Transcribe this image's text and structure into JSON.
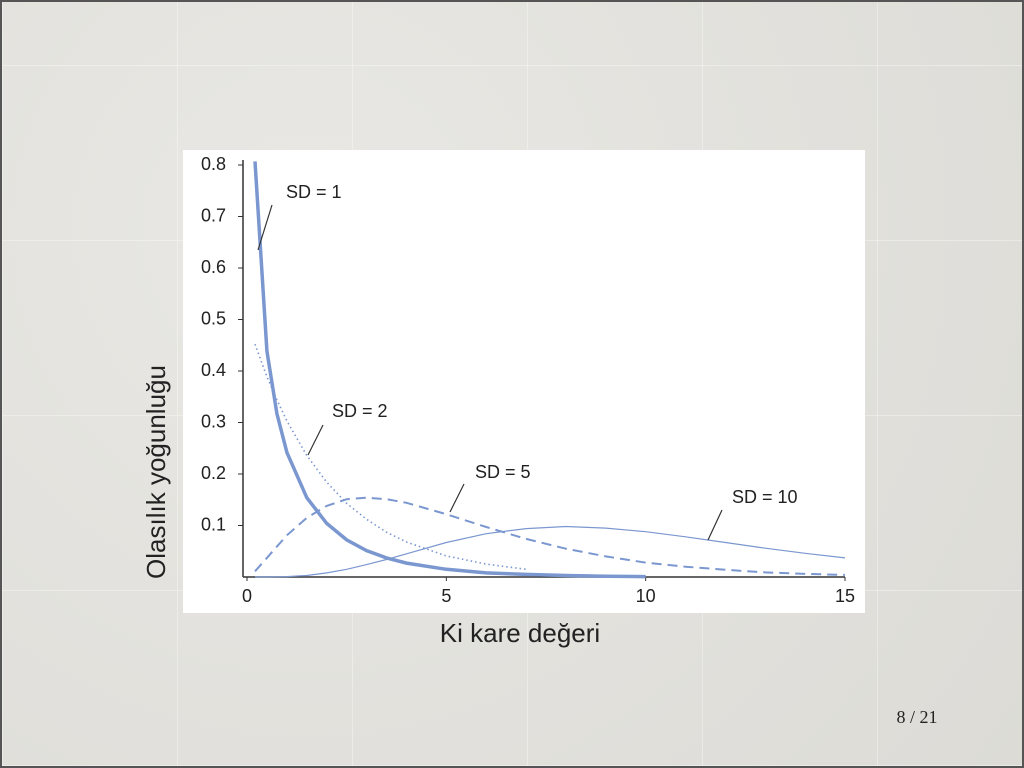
{
  "chart_data": {
    "type": "line",
    "x_label": "Ki kare değeri",
    "y_label": "Olasılık yoğunluğu",
    "x": [
      0.2,
      0.5,
      0.75,
      1,
      1.5,
      2,
      2.5,
      3,
      3.5,
      4,
      5,
      6,
      7,
      8,
      9,
      10,
      11,
      12,
      13,
      14,
      15
    ],
    "series": [
      {
        "name": "SD = 1",
        "color": "#7b97d0",
        "style": "solid",
        "width": 3.5,
        "values": [
          0.807,
          0.439,
          0.317,
          0.242,
          0.154,
          0.104,
          0.072,
          0.051,
          0.037,
          0.027,
          0.015,
          0.008,
          0.005,
          0.003,
          0.0015,
          0.0008,
          null,
          null,
          null,
          null,
          null
        ]
      },
      {
        "name": "SD = 2",
        "color": "#7b97d0",
        "style": "dotted",
        "width": 1.6,
        "values": [
          0.452,
          0.389,
          0.344,
          0.303,
          0.236,
          0.184,
          0.143,
          0.112,
          0.087,
          0.068,
          0.041,
          0.025,
          0.015,
          null,
          null,
          null,
          null,
          null,
          null,
          null,
          null
        ]
      },
      {
        "name": "SD = 5",
        "color": "#7b97d0",
        "style": "dashed",
        "width": 2,
        "values": [
          0.011,
          0.037,
          0.059,
          0.081,
          0.115,
          0.138,
          0.151,
          0.154,
          0.151,
          0.144,
          0.122,
          0.097,
          0.074,
          0.055,
          0.04,
          0.028,
          0.02,
          0.014,
          0.009,
          0.006,
          0.004
        ]
      },
      {
        "name": "SD = 10",
        "color": "#7b97d0",
        "style": "solid",
        "width": 1.2,
        "values": [
          0,
          0.0001,
          0.0003,
          0.0008,
          0.003,
          0.008,
          0.015,
          0.024,
          0.034,
          0.045,
          0.067,
          0.084,
          0.094,
          0.098,
          0.095,
          0.088,
          0.078,
          0.067,
          0.056,
          0.046,
          0.037
        ]
      }
    ],
    "xlim": [
      0,
      15
    ],
    "ylim": [
      0,
      0.8
    ],
    "xticks": [
      0,
      5,
      10,
      15
    ],
    "yticks": [
      0.1,
      0.2,
      0.3,
      0.4,
      0.5,
      0.6,
      0.7,
      0.8
    ]
  },
  "slide": {
    "page": "8 / 21"
  }
}
